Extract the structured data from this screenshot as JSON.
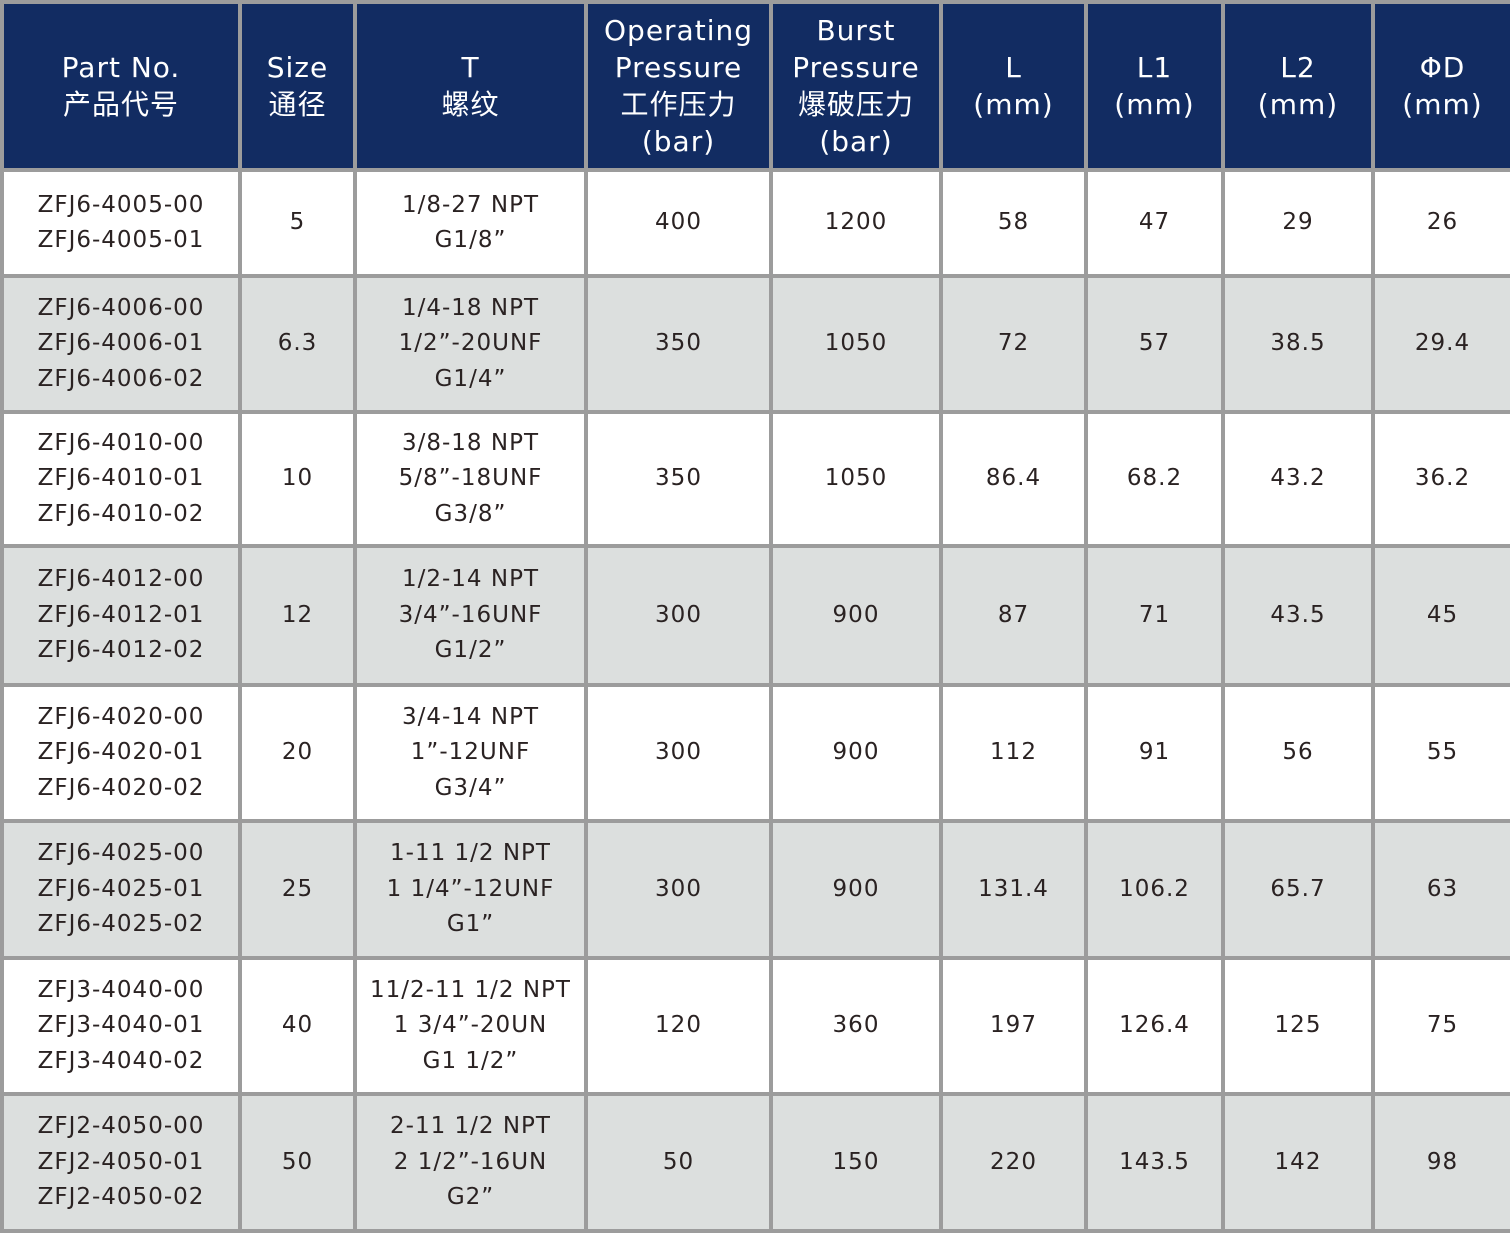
{
  "colors": {
    "header_bg": "#122c62",
    "row_alt_bg": "#dcdfde",
    "border": "#9c9c9c"
  },
  "headers": [
    "Part No.\n产品代号",
    "Size\n通径",
    "T\n螺纹",
    "Operating\nPressure\n工作压力\n(bar)",
    "Burst\nPressure\n爆破压力\n(bar)",
    "L\n(mm)",
    "L1\n(mm)",
    "L2\n(mm)",
    "ΦD\n(mm)"
  ],
  "rows": [
    [
      "ZFJ6-4005-00\nZFJ6-4005-01",
      "5",
      "1/8-27 NPT\nG1/8”",
      "400",
      "1200",
      "58",
      "47",
      "29",
      "26"
    ],
    [
      "ZFJ6-4006-00\nZFJ6-4006-01\nZFJ6-4006-02",
      "6.3",
      "1/4-18 NPT\n1/2”-20UNF\nG1/4”",
      "350",
      "1050",
      "72",
      "57",
      "38.5",
      "29.4"
    ],
    [
      "ZFJ6-4010-00\nZFJ6-4010-01\nZFJ6-4010-02",
      "10",
      "3/8-18 NPT\n5/8”-18UNF\nG3/8”",
      "350",
      "1050",
      "86.4",
      "68.2",
      "43.2",
      "36.2"
    ],
    [
      "ZFJ6-4012-00\nZFJ6-4012-01\nZFJ6-4012-02",
      "12",
      "1/2-14 NPT\n3/4”-16UNF\nG1/2”",
      "300",
      "900",
      "87",
      "71",
      "43.5",
      "45"
    ],
    [
      "ZFJ6-4020-00\nZFJ6-4020-01\nZFJ6-4020-02",
      "20",
      "3/4-14 NPT\n1”-12UNF\nG3/4”",
      "300",
      "900",
      "112",
      "91",
      "56",
      "55"
    ],
    [
      "ZFJ6-4025-00\nZFJ6-4025-01\nZFJ6-4025-02",
      "25",
      "1-11 1/2 NPT\n1 1/4”-12UNF\nG1”",
      "300",
      "900",
      "131.4",
      "106.2",
      "65.7",
      "63"
    ],
    [
      "ZFJ3-4040-00\nZFJ3-4040-01\nZFJ3-4040-02",
      "40",
      "11/2-11 1/2 NPT\n1 3/4”-20UN\nG1 1/2”",
      "120",
      "360",
      "197",
      "126.4",
      "125",
      "75"
    ],
    [
      "ZFJ2-4050-00\nZFJ2-4050-01\nZFJ2-4050-02",
      "50",
      "2-11 1/2 NPT\n2 1/2”-16UN\nG2”",
      "50",
      "150",
      "220",
      "143.5",
      "142",
      "98"
    ]
  ]
}
